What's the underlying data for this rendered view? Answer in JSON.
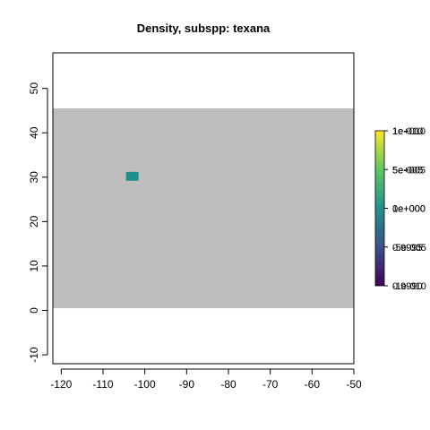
{
  "chart_data": {
    "type": "heatmap",
    "title": "Density, subspp: texana",
    "xlabel": "",
    "ylabel": "",
    "xlim": [
      -122,
      -50
    ],
    "ylim": [
      -12,
      58
    ],
    "x_ticks": [
      -120,
      -110,
      -100,
      -90,
      -80,
      -70,
      -60,
      -50
    ],
    "x_tick_labels": [
      "-120",
      "-110",
      "-100",
      "-90",
      "-80",
      "-70",
      "-60",
      "-50"
    ],
    "y_ticks": [
      -10,
      0,
      10,
      20,
      30,
      40,
      50
    ],
    "y_tick_labels": [
      "-10",
      "0",
      "10",
      "20",
      "30",
      "40",
      "50"
    ],
    "grid": false,
    "na_region": {
      "x_range": [
        -122,
        -50
      ],
      "y_range": [
        0.5,
        45.5
      ],
      "color": "#bebebe"
    },
    "cells": [
      {
        "x_range": [
          -104.5,
          -101.5
        ],
        "y_range": [
          29.2,
          31.2
        ],
        "value": 1.0,
        "color": "#21908C"
      }
    ],
    "legend": {
      "placement": "right",
      "type": "colorbar",
      "colors": [
        "#440154",
        "#3B528B",
        "#21908C",
        "#5DC863",
        "#FDE725"
      ],
      "label_groups": [
        [
          "1e-010",
          "1e+010"
        ],
        [
          "5e-005",
          "5e+005"
        ],
        [
          "0e+000",
          "1e+000"
        ],
        [
          "-5e-005",
          "0.9995"
        ],
        [
          "-1e-010",
          "0.9990"
        ]
      ]
    }
  }
}
